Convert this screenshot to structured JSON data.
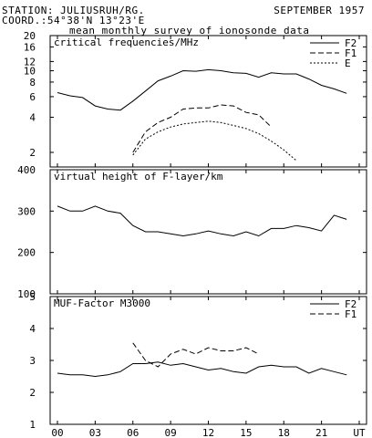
{
  "header": {
    "station": "STATION: JULIUSRUH/RG.",
    "coord": "COORD.:54°38'N 13°23'E",
    "date": "SEPTEMBER 1957",
    "subtitle": "mean monthly survey of ionosonde data"
  },
  "chart_data": [
    {
      "type": "line",
      "title": "critical frequencies/MHz",
      "yscale": "log",
      "ylim": [
        1.5,
        20
      ],
      "yticks": [
        2,
        4,
        6,
        8,
        10,
        12,
        16,
        20
      ],
      "xlim": [
        0,
        24
      ],
      "grid": false,
      "legend": "top-right",
      "series": [
        {
          "name": "F2",
          "style": "solid",
          "x": [
            0,
            1,
            2,
            3,
            4,
            5,
            6,
            7,
            8,
            9,
            10,
            11,
            12,
            13,
            14,
            15,
            16,
            17,
            18,
            19,
            20,
            21,
            22,
            23
          ],
          "values": [
            6.5,
            6.1,
            5.9,
            5.0,
            4.7,
            4.6,
            5.5,
            6.7,
            8.2,
            9.0,
            10.0,
            9.9,
            10.2,
            10.0,
            9.6,
            9.5,
            8.8,
            9.6,
            9.4,
            9.4,
            8.5,
            7.5,
            7.0,
            6.4
          ]
        },
        {
          "name": "F1",
          "style": "dashed",
          "x": [
            6,
            7,
            8,
            9,
            10,
            11,
            12,
            13,
            14,
            15,
            16,
            17
          ],
          "values": [
            2.0,
            3.0,
            3.6,
            4.0,
            4.7,
            4.8,
            4.8,
            5.1,
            5.0,
            4.4,
            4.2,
            3.3
          ]
        },
        {
          "name": "E",
          "style": "dotted",
          "x": [
            6,
            7,
            8,
            9,
            10,
            11,
            12,
            13,
            14,
            15,
            16,
            17,
            18,
            19
          ],
          "values": [
            1.9,
            2.6,
            3.0,
            3.3,
            3.5,
            3.6,
            3.7,
            3.6,
            3.4,
            3.2,
            2.9,
            2.5,
            2.1,
            1.7
          ]
        }
      ]
    },
    {
      "type": "line",
      "title": "virtual height of F-layer/km",
      "ylim": [
        100,
        400
      ],
      "yticks": [
        100,
        200,
        300,
        400
      ],
      "xlim": [
        0,
        24
      ],
      "grid": false,
      "series": [
        {
          "style": "solid",
          "x": [
            0,
            1,
            2,
            3,
            4,
            5,
            6,
            7,
            8,
            9,
            10,
            11,
            12,
            13,
            14,
            15,
            16,
            17,
            18,
            19,
            20,
            21,
            22,
            23
          ],
          "values": [
            312,
            300,
            300,
            312,
            300,
            295,
            265,
            250,
            250,
            245,
            240,
            245,
            252,
            245,
            240,
            250,
            240,
            258,
            258,
            265,
            260,
            252,
            290,
            280
          ]
        }
      ]
    },
    {
      "type": "line",
      "title": "MUF-Factor M3000",
      "ylim": [
        1,
        5
      ],
      "yticks": [
        1,
        2,
        3,
        4,
        5
      ],
      "xlim": [
        0,
        24
      ],
      "grid": false,
      "legend": "top-right",
      "series": [
        {
          "name": "F2",
          "style": "solid",
          "x": [
            0,
            1,
            2,
            3,
            4,
            5,
            6,
            7,
            8,
            9,
            10,
            11,
            12,
            13,
            14,
            15,
            16,
            17,
            18,
            19,
            20,
            21,
            22,
            23
          ],
          "values": [
            2.6,
            2.55,
            2.55,
            2.5,
            2.55,
            2.65,
            2.9,
            2.9,
            2.95,
            2.85,
            2.9,
            2.8,
            2.7,
            2.75,
            2.65,
            2.6,
            2.8,
            2.85,
            2.8,
            2.8,
            2.6,
            2.75,
            2.65,
            2.55
          ]
        },
        {
          "name": "F1",
          "style": "dashed",
          "x": [
            6,
            7,
            8,
            9,
            10,
            11,
            12,
            13,
            14,
            15,
            16
          ],
          "values": [
            3.55,
            3.0,
            2.8,
            3.2,
            3.35,
            3.2,
            3.4,
            3.3,
            3.3,
            3.4,
            3.2
          ]
        }
      ]
    }
  ],
  "xaxis": {
    "ticks": [
      0,
      3,
      6,
      9,
      12,
      15,
      18,
      21,
      24
    ],
    "labels": [
      "00",
      "03",
      "06",
      "09",
      "12",
      "15",
      "18",
      "21",
      "UT"
    ]
  },
  "style": {
    "line_color": "#000000",
    "background": "#ffffff"
  }
}
